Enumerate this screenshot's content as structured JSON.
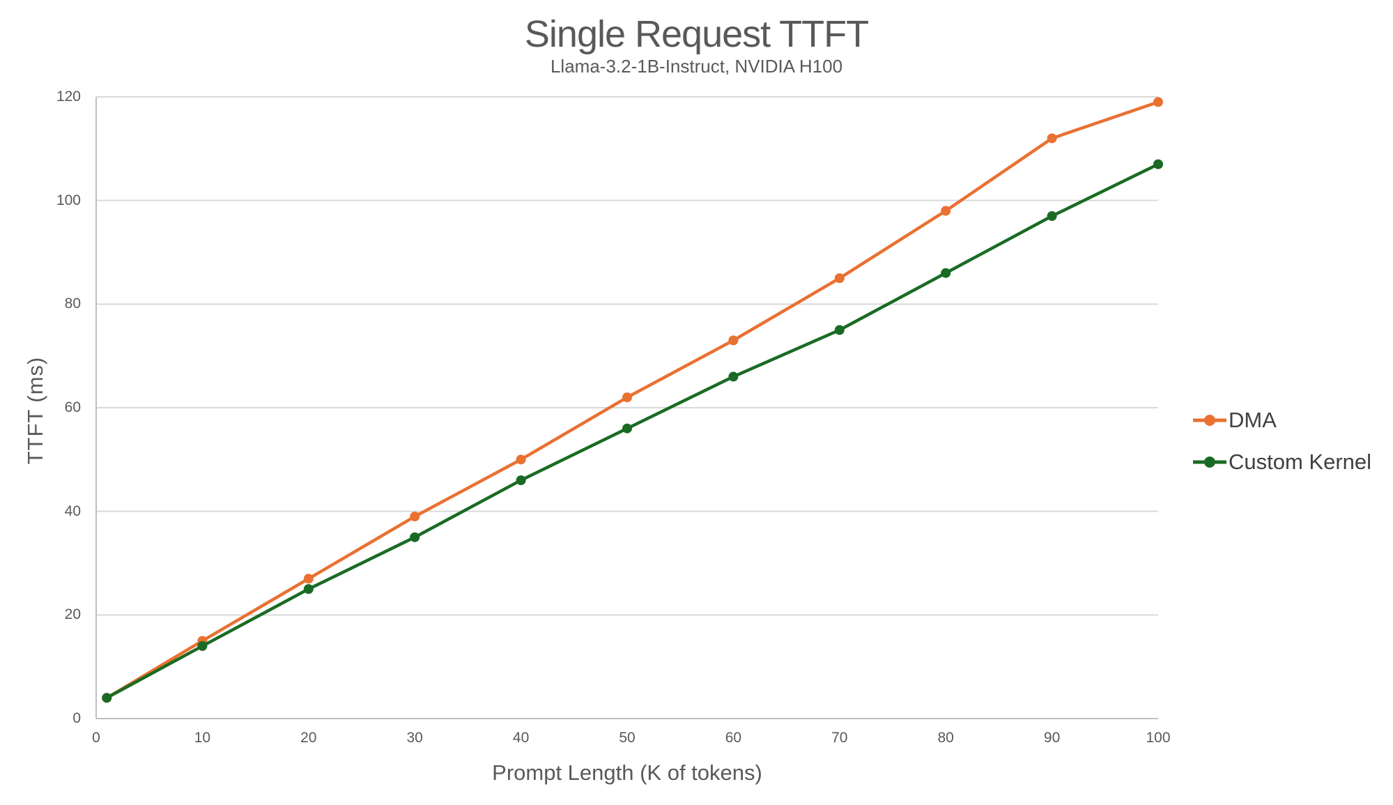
{
  "title": "Single Request TTFT",
  "subtitle": "Llama-3.2-1B-Instruct, NVIDIA H100",
  "chart_data": {
    "type": "line",
    "title": "Single Request TTFT",
    "subtitle": "Llama-3.2-1B-Instruct, NVIDIA H100",
    "xlabel": "Prompt Length (K of tokens)",
    "ylabel": "TTFT (ms)",
    "x": [
      1,
      10,
      20,
      30,
      40,
      50,
      60,
      70,
      80,
      90,
      100
    ],
    "series": [
      {
        "name": "DMA",
        "color": "#E97132",
        "values": [
          4,
          15,
          27,
          39,
          50,
          62,
          73,
          85,
          98,
          112,
          119
        ]
      },
      {
        "name": "Custom Kernel",
        "color": "#196B24",
        "values": [
          4,
          14,
          25,
          35,
          46,
          56,
          66,
          75,
          86,
          97,
          107
        ]
      }
    ],
    "xlim": [
      0,
      100
    ],
    "ylim": [
      0,
      120
    ],
    "x_ticks": [
      0,
      10,
      20,
      30,
      40,
      50,
      60,
      70,
      80,
      90,
      100
    ],
    "y_ticks": [
      0,
      20,
      40,
      60,
      80,
      100,
      120
    ],
    "grid": "horizontal",
    "legend_position": "right",
    "colors": {
      "grid": "#D9D9D9",
      "axis": "#BFBFBF",
      "tick_text": "#595959",
      "title_text": "#595959",
      "legend_text": "#404040"
    }
  }
}
